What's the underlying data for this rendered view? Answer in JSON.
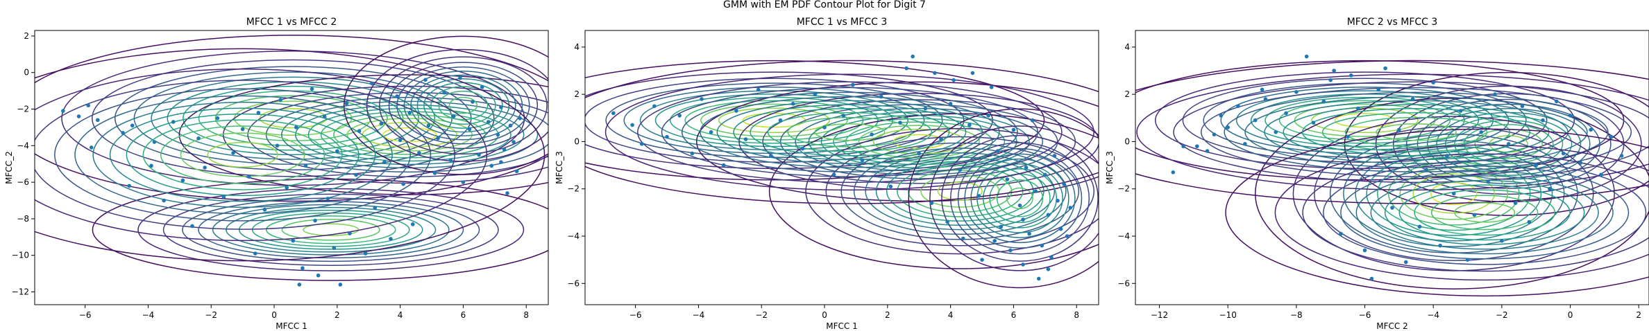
{
  "figure_title": "GMM with EM PDF Contour Plot for Digit 7",
  "colors": {
    "points": "#1f77b4",
    "contour_colormap": "viridis",
    "viridis_stops": [
      "#440154",
      "#482878",
      "#3e4989",
      "#31688e",
      "#26828e",
      "#1f9e89",
      "#35b779",
      "#6ece58",
      "#b5de2b",
      "#fde725"
    ]
  },
  "chart_data": [
    {
      "type": "scatter",
      "overlay": "contour",
      "title": "MFCC 1 vs MFCC 2",
      "xlabel": "MFCC 1",
      "ylabel": "MFCC_2",
      "xlim": [
        -7.6,
        8.7
      ],
      "ylim": [
        -12.7,
        2.3
      ],
      "xticks": [
        -6,
        -4,
        -2,
        0,
        2,
        4,
        6,
        8
      ],
      "yticks": [
        -12,
        -10,
        -8,
        -6,
        -4,
        -2,
        0,
        2
      ],
      "grid": false,
      "components": [
        {
          "mean": [
            0.6,
            -2.5
          ],
          "sd": [
            3.6,
            1.8
          ],
          "rho": 0.0,
          "weight": 0.22
        },
        {
          "mean": [
            4.3,
            -3.4
          ],
          "sd": [
            2.9,
            1.3
          ],
          "rho": 0.0,
          "weight": 0.28
        },
        {
          "mean": [
            1.8,
            -8.6
          ],
          "sd": [
            3.0,
            1.1
          ],
          "rho": 0.0,
          "weight": 0.18
        },
        {
          "mean": [
            6.0,
            -1.8
          ],
          "sd": [
            1.5,
            1.5
          ],
          "rho": 0.0,
          "weight": 0.12
        },
        {
          "mean": [
            -1.0,
            -4.5
          ],
          "sd": [
            3.8,
            2.3
          ],
          "rho": 0.0,
          "weight": 0.2
        }
      ],
      "points": [
        [
          -6.7,
          -2.1
        ],
        [
          -6.2,
          -2.4
        ],
        [
          -5.9,
          -1.8
        ],
        [
          -5.6,
          -2.6
        ],
        [
          -5.8,
          -4.1
        ],
        [
          -4.8,
          -3.3
        ],
        [
          -4.5,
          -2.9
        ],
        [
          -4.6,
          -6.2
        ],
        [
          -3.8,
          -3.8
        ],
        [
          -3.9,
          -5.1
        ],
        [
          -3.2,
          -2.7
        ],
        [
          -3.5,
          -7.0
        ],
        [
          -2.9,
          -5.9
        ],
        [
          -2.4,
          -3.6
        ],
        [
          -2.2,
          -5.2
        ],
        [
          -2.6,
          -8.4
        ],
        [
          -1.8,
          -2.5
        ],
        [
          -1.6,
          -6.8
        ],
        [
          -1.3,
          -4.4
        ],
        [
          -1.0,
          -3.1
        ],
        [
          -0.8,
          -5.7
        ],
        [
          -0.6,
          -9.9
        ],
        [
          -0.5,
          -2.2
        ],
        [
          -0.3,
          -7.5
        ],
        [
          0.1,
          -4.0
        ],
        [
          0.2,
          -1.5
        ],
        [
          0.4,
          -6.3
        ],
        [
          0.6,
          -9.2
        ],
        [
          0.7,
          -3.0
        ],
        [
          0.9,
          -10.7
        ],
        [
          1.0,
          -5.1
        ],
        [
          1.2,
          -0.9
        ],
        [
          1.3,
          -8.1
        ],
        [
          1.4,
          -11.1
        ],
        [
          1.6,
          -2.4
        ],
        [
          1.7,
          -6.9
        ],
        [
          1.9,
          -9.6
        ],
        [
          2.0,
          -4.3
        ],
        [
          2.1,
          -11.6
        ],
        [
          2.3,
          -1.7
        ],
        [
          2.4,
          -8.8
        ],
        [
          2.6,
          -5.6
        ],
        [
          2.7,
          -3.2
        ],
        [
          2.9,
          -9.9
        ],
        [
          3.1,
          -0.6
        ],
        [
          3.2,
          -7.4
        ],
        [
          3.4,
          -2.8
        ],
        [
          3.5,
          -4.9
        ],
        [
          3.7,
          -9.1
        ],
        [
          3.9,
          -1.3
        ],
        [
          4.0,
          -3.7
        ],
        [
          4.1,
          -6.1
        ],
        [
          4.3,
          -2.2
        ],
        [
          4.4,
          -8.3
        ],
        [
          4.6,
          -4.4
        ],
        [
          4.8,
          -0.4
        ],
        [
          4.9,
          -2.9
        ],
        [
          5.1,
          -5.5
        ],
        [
          5.2,
          -3.6
        ],
        [
          5.4,
          -1.1
        ],
        [
          5.6,
          -4.8
        ],
        [
          5.7,
          -2.4
        ],
        [
          5.9,
          -0.3
        ],
        [
          6.0,
          -6.0
        ],
        [
          6.2,
          -3.1
        ],
        [
          6.3,
          -1.6
        ],
        [
          6.5,
          -4.5
        ],
        [
          6.6,
          -0.8
        ],
        [
          6.8,
          -2.7
        ],
        [
          6.9,
          -5.1
        ],
        [
          7.1,
          -3.4
        ],
        [
          7.2,
          -1.9
        ],
        [
          7.3,
          -4.2
        ],
        [
          7.4,
          -6.6
        ],
        [
          7.5,
          -2.9
        ],
        [
          7.6,
          -3.8
        ],
        [
          7.7,
          -5.4
        ],
        [
          7.8,
          -2.5
        ],
        [
          7.2,
          -4.9
        ],
        [
          0.8,
          -11.6
        ]
      ]
    },
    {
      "type": "scatter",
      "overlay": "contour",
      "title": "MFCC 1 vs MFCC 3",
      "xlabel": "MFCC 1",
      "ylabel": "MFCC_3",
      "xlim": [
        -7.6,
        8.7
      ],
      "ylim": [
        -6.9,
        4.7
      ],
      "xticks": [
        -6,
        -4,
        -2,
        0,
        2,
        4,
        6,
        8
      ],
      "yticks": [
        -6,
        -4,
        -2,
        0,
        2,
        4
      ],
      "grid": false,
      "components": [
        {
          "mean": [
            -1.6,
            0.9
          ],
          "sd": [
            3.4,
            1.0
          ],
          "rho": 0.0,
          "weight": 0.25
        },
        {
          "mean": [
            3.0,
            0.0
          ],
          "sd": [
            2.8,
            1.0
          ],
          "rho": 0.0,
          "weight": 0.25
        },
        {
          "mean": [
            4.3,
            -2.1
          ],
          "sd": [
            2.4,
            1.3
          ],
          "rho": 0.0,
          "weight": 0.22
        },
        {
          "mean": [
            6.2,
            -2.4
          ],
          "sd": [
            1.4,
            1.5
          ],
          "rho": 0.0,
          "weight": 0.13
        },
        {
          "mean": [
            0.8,
            0.4
          ],
          "sd": [
            3.8,
            1.2
          ],
          "rho": 0.0,
          "weight": 0.15
        }
      ],
      "points": [
        [
          -6.7,
          1.2
        ],
        [
          -6.1,
          0.7
        ],
        [
          -5.8,
          -0.1
        ],
        [
          -5.4,
          1.5
        ],
        [
          -5.0,
          0.2
        ],
        [
          -4.6,
          1.1
        ],
        [
          -4.2,
          -0.5
        ],
        [
          -3.9,
          1.8
        ],
        [
          -3.6,
          0.4
        ],
        [
          -3.2,
          -1.0
        ],
        [
          -2.8,
          1.3
        ],
        [
          -2.5,
          0.1
        ],
        [
          -2.1,
          2.2
        ],
        [
          -1.7,
          -0.6
        ],
        [
          -1.4,
          0.9
        ],
        [
          -1.0,
          1.6
        ],
        [
          -0.7,
          -0.3
        ],
        [
          -0.3,
          2.0
        ],
        [
          0.0,
          0.6
        ],
        [
          0.3,
          -1.4
        ],
        [
          0.6,
          1.1
        ],
        [
          0.9,
          2.4
        ],
        [
          1.2,
          -0.8
        ],
        [
          1.5,
          0.3
        ],
        [
          1.8,
          1.9
        ],
        [
          2.1,
          -1.9
        ],
        [
          2.4,
          0.8
        ],
        [
          2.6,
          3.1
        ],
        [
          2.8,
          3.6
        ],
        [
          3.0,
          -0.5
        ],
        [
          3.2,
          1.4
        ],
        [
          3.4,
          -2.6
        ],
        [
          3.5,
          2.9
        ],
        [
          3.7,
          0.1
        ],
        [
          3.9,
          -3.4
        ],
        [
          4.0,
          1.6
        ],
        [
          4.1,
          2.6
        ],
        [
          4.3,
          -1.2
        ],
        [
          4.4,
          -4.1
        ],
        [
          4.6,
          0.7
        ],
        [
          4.7,
          2.9
        ],
        [
          4.9,
          -2.3
        ],
        [
          5.0,
          -5.0
        ],
        [
          5.2,
          1.1
        ],
        [
          5.3,
          2.3
        ],
        [
          5.5,
          -0.4
        ],
        [
          5.6,
          -3.6
        ],
        [
          5.8,
          -1.6
        ],
        [
          5.9,
          -4.6
        ],
        [
          6.0,
          0.5
        ],
        [
          6.2,
          -2.7
        ],
        [
          6.3,
          -5.2
        ],
        [
          6.4,
          -1.1
        ],
        [
          6.5,
          -3.9
        ],
        [
          6.6,
          0.9
        ],
        [
          6.7,
          -2.1
        ],
        [
          6.8,
          -5.8
        ],
        [
          6.9,
          -4.4
        ],
        [
          7.0,
          -1.4
        ],
        [
          7.1,
          -3.1
        ],
        [
          7.2,
          -4.9
        ],
        [
          7.3,
          -0.6
        ],
        [
          7.4,
          -2.5
        ],
        [
          7.5,
          -3.7
        ],
        [
          7.6,
          -1.8
        ],
        [
          7.7,
          -4.0
        ],
        [
          7.8,
          -2.8
        ],
        [
          7.1,
          -5.4
        ],
        [
          6.3,
          -3.3
        ],
        [
          5.4,
          -4.2
        ]
      ]
    },
    {
      "type": "scatter",
      "overlay": "contour",
      "title": "MFCC 2 vs MFCC 3",
      "xlabel": "MFCC 2",
      "ylabel": "MFCC_3",
      "xlim": [
        -12.7,
        2.3
      ],
      "ylim": [
        -6.9,
        4.7
      ],
      "xticks": [
        -12,
        -10,
        -8,
        -6,
        -4,
        -2,
        0,
        2
      ],
      "yticks": [
        -6,
        -4,
        -2,
        0,
        2,
        4
      ],
      "grid": false,
      "components": [
        {
          "mean": [
            -6.0,
            0.9
          ],
          "sd": [
            3.0,
            1.0
          ],
          "rho": 0.0,
          "weight": 0.25
        },
        {
          "mean": [
            -1.8,
            -0.1
          ],
          "sd": [
            1.9,
            1.2
          ],
          "rho": 0.0,
          "weight": 0.18
        },
        {
          "mean": [
            -3.4,
            -2.2
          ],
          "sd": [
            2.3,
            1.6
          ],
          "rho": 0.0,
          "weight": 0.27
        },
        {
          "mean": [
            -4.5,
            0.4
          ],
          "sd": [
            4.0,
            1.2
          ],
          "rho": 0.0,
          "weight": 0.15
        },
        {
          "mean": [
            -2.5,
            -3.0
          ],
          "sd": [
            3.0,
            1.4
          ],
          "rho": 0.0,
          "weight": 0.15
        }
      ],
      "points": [
        [
          -11.6,
          -1.3
        ],
        [
          -11.3,
          -0.2
        ],
        [
          -10.9,
          -0.2
        ],
        [
          -10.6,
          -0.4
        ],
        [
          -10.4,
          0.3
        ],
        [
          -10.2,
          1.1
        ],
        [
          -10.0,
          0.6
        ],
        [
          -9.7,
          1.5
        ],
        [
          -9.5,
          -0.1
        ],
        [
          -9.2,
          0.9
        ],
        [
          -8.9,
          1.8
        ],
        [
          -8.6,
          0.4
        ],
        [
          -8.3,
          1.2
        ],
        [
          -8.0,
          2.1
        ],
        [
          -7.7,
          3.6
        ],
        [
          -7.5,
          0.8
        ],
        [
          -7.2,
          1.7
        ],
        [
          -7.0,
          2.6
        ],
        [
          -6.9,
          3.0
        ],
        [
          -6.7,
          -3.9
        ],
        [
          -6.5,
          0.2
        ],
        [
          -6.2,
          1.4
        ],
        [
          -6.0,
          -4.6
        ],
        [
          -5.8,
          -5.8
        ],
        [
          -5.6,
          2.2
        ],
        [
          -5.4,
          3.1
        ],
        [
          -5.2,
          -2.8
        ],
        [
          -5.0,
          0.5
        ],
        [
          -4.8,
          -5.1
        ],
        [
          -4.6,
          1.8
        ],
        [
          -4.4,
          -3.6
        ],
        [
          -4.2,
          -1.2
        ],
        [
          -4.0,
          2.5
        ],
        [
          -3.8,
          -4.4
        ],
        [
          -3.6,
          -0.6
        ],
        [
          -3.4,
          -2.2
        ],
        [
          -3.2,
          1.3
        ],
        [
          -3.0,
          -5.0
        ],
        [
          -2.8,
          -3.1
        ],
        [
          -2.6,
          0.4
        ],
        [
          -2.4,
          -1.7
        ],
        [
          -2.2,
          2.0
        ],
        [
          -2.0,
          -4.2
        ],
        [
          -1.8,
          -0.1
        ],
        [
          -1.6,
          -2.6
        ],
        [
          -1.4,
          1.5
        ],
        [
          -1.2,
          -3.4
        ],
        [
          -1.0,
          -1.0
        ],
        [
          -0.8,
          0.9
        ],
        [
          -0.6,
          -2.0
        ],
        [
          -0.4,
          1.7
        ],
        [
          -0.2,
          -0.5
        ],
        [
          0.0,
          1.1
        ],
        [
          0.3,
          -0.9
        ],
        [
          0.6,
          0.5
        ],
        [
          0.9,
          -1.4
        ],
        [
          1.2,
          0.2
        ],
        [
          1.5,
          -0.6
        ],
        [
          -9.0,
          2.2
        ],
        [
          -6.4,
          2.8
        ]
      ]
    }
  ]
}
